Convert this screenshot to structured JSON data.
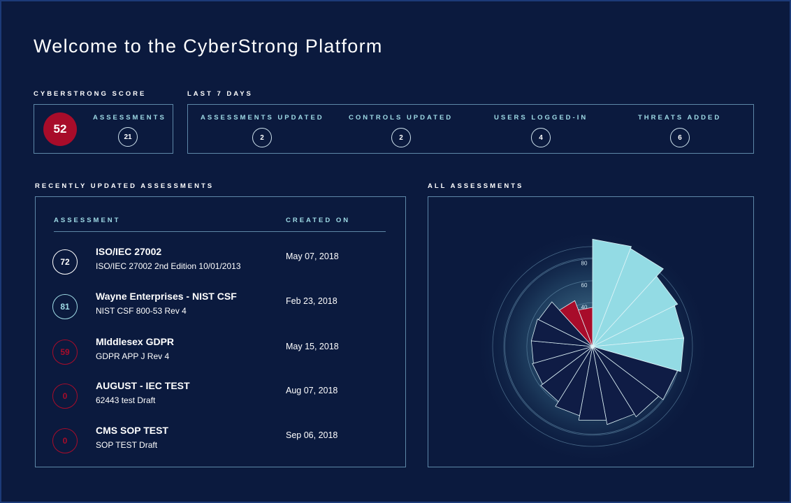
{
  "page": {
    "title": "Welcome to the CyberStrong Platform"
  },
  "score": {
    "label": "CYBERSTRONG SCORE",
    "value": "52",
    "assessments_label": "ASSESSMENTS",
    "assessments_count": "21"
  },
  "last7": {
    "label": "LAST 7 DAYS",
    "stats": [
      {
        "label": "ASSESSMENTS UPDATED",
        "value": "2"
      },
      {
        "label": "CONTROLS UPDATED",
        "value": "2"
      },
      {
        "label": "USERS LOGGED-IN",
        "value": "4"
      },
      {
        "label": "THREATS ADDED",
        "value": "6"
      }
    ]
  },
  "recent": {
    "label": "RECENTLY UPDATED ASSESSMENTS",
    "col_assessment": "ASSESSMENT",
    "col_created": "CREATED ON",
    "rows": [
      {
        "score": "72",
        "title": "ISO/IEC 27002",
        "subtitle": "ISO/IEC 27002 2nd Edition 10/01/2013",
        "date": "May 07, 2018",
        "status": "white"
      },
      {
        "score": "81",
        "title": "Wayne Enterprises - NIST CSF",
        "subtitle": "NIST CSF 800-53 Rev 4",
        "date": "Feb  23, 2018",
        "status": "blue"
      },
      {
        "score": "59",
        "title": "MIddlesex GDPR",
        "subtitle": "GDPR APP J Rev 4",
        "date": "May 15, 2018",
        "status": "red"
      },
      {
        "score": "0",
        "title": "AUGUST - IEC TEST",
        "subtitle": "62443 test Draft",
        "date": "Aug  07, 2018",
        "status": "red"
      },
      {
        "score": "0",
        "title": "CMS SOP TEST",
        "subtitle": "SOP TEST Draft",
        "date": "Sep  06, 2018",
        "status": "red"
      }
    ]
  },
  "all_assessments": {
    "label": "ALL ASSESSMENTS"
  },
  "chart_data": {
    "type": "polar-area",
    "title": "",
    "rlim": [
      0,
      100
    ],
    "ring_labels": [
      "40",
      "60",
      "80"
    ],
    "colors": {
      "high": "#93dbe4",
      "low": "#0f1c45",
      "critical": "#a80c2a"
    },
    "slices": [
      {
        "value": 96,
        "color": "high"
      },
      {
        "value": 94,
        "color": "high"
      },
      {
        "value": 85,
        "color": "high"
      },
      {
        "value": 82,
        "color": "high"
      },
      {
        "value": 82,
        "color": "high"
      },
      {
        "value": 79,
        "color": "low"
      },
      {
        "value": 74,
        "color": "low"
      },
      {
        "value": 71,
        "color": "low"
      },
      {
        "value": 67,
        "color": "low"
      },
      {
        "value": 63,
        "color": "low"
      },
      {
        "value": 58,
        "color": "low"
      },
      {
        "value": 56,
        "color": "low"
      },
      {
        "value": 55,
        "color": "low"
      },
      {
        "value": 55,
        "color": "low"
      },
      {
        "value": 54,
        "color": "low"
      },
      {
        "value": 44,
        "color": "critical"
      },
      {
        "value": 35,
        "color": "critical"
      }
    ]
  }
}
